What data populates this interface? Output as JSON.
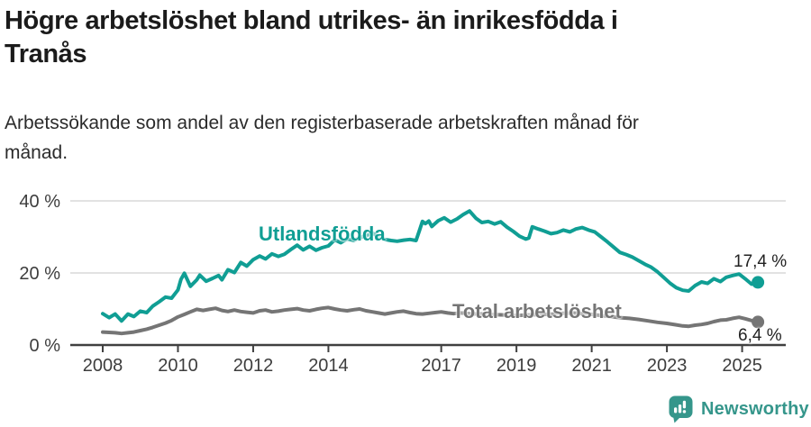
{
  "title": {
    "line1": "Högre arbetslöshet bland utrikes- än inrikesfödda i",
    "line2": "Tranås"
  },
  "subtitle": {
    "line1": "Arbetssökande som andel av den registerbaserade arbetskraften månad för",
    "line2": "månad."
  },
  "footer": {
    "brand": "Newsworthy",
    "logo_icon": "newsworthy-speech-bubble-bar-chart-icon",
    "brand_color": "#35968b"
  },
  "colors": {
    "accent_teal": "#109e94",
    "series_gray": "#757575",
    "gridline": "#d9d9d9",
    "axis": "#404040",
    "tick_text": "#3d3d3d",
    "annotation_text": "#222222"
  },
  "chart_data": {
    "type": "line",
    "x_axis": {
      "ticks": [
        2008,
        2010,
        2012,
        2014,
        2017,
        2019,
        2021,
        2023,
        2025
      ],
      "range": [
        2007.8,
        2025.9
      ],
      "unit": "year (monthly data)"
    },
    "y_axis": {
      "ticks": [
        {
          "value": 0,
          "label": "0 %"
        },
        {
          "value": 20,
          "label": "20 %"
        },
        {
          "value": 40,
          "label": "40 %"
        }
      ],
      "range": [
        0,
        44
      ],
      "grid": true
    },
    "legend_position": "inline-labels",
    "series": [
      {
        "name": "Utlandsfödda",
        "color": "#109e94",
        "end_label": "17,4 %",
        "end_value": 17.4,
        "points": [
          [
            2008.0,
            8.7
          ],
          [
            2008.17,
            7.6
          ],
          [
            2008.33,
            8.6
          ],
          [
            2008.5,
            6.7
          ],
          [
            2008.67,
            8.6
          ],
          [
            2008.83,
            7.9
          ],
          [
            2009.0,
            9.4
          ],
          [
            2009.17,
            9.0
          ],
          [
            2009.33,
            10.8
          ],
          [
            2009.5,
            12.0
          ],
          [
            2009.67,
            13.3
          ],
          [
            2009.83,
            13.0
          ],
          [
            2010.0,
            15.3
          ],
          [
            2010.08,
            18.2
          ],
          [
            2010.17,
            19.9
          ],
          [
            2010.33,
            16.3
          ],
          [
            2010.5,
            18.1
          ],
          [
            2010.58,
            19.4
          ],
          [
            2010.75,
            17.7
          ],
          [
            2010.92,
            18.5
          ],
          [
            2011.08,
            19.3
          ],
          [
            2011.17,
            18.1
          ],
          [
            2011.33,
            20.9
          ],
          [
            2011.5,
            20.1
          ],
          [
            2011.67,
            22.9
          ],
          [
            2011.83,
            21.9
          ],
          [
            2012.0,
            23.7
          ],
          [
            2012.17,
            24.7
          ],
          [
            2012.33,
            23.9
          ],
          [
            2012.5,
            25.3
          ],
          [
            2012.67,
            24.6
          ],
          [
            2012.83,
            25.2
          ],
          [
            2013.0,
            26.5
          ],
          [
            2013.17,
            27.7
          ],
          [
            2013.33,
            26.4
          ],
          [
            2013.5,
            27.4
          ],
          [
            2013.67,
            26.3
          ],
          [
            2013.83,
            27.0
          ],
          [
            2014.0,
            27.5
          ],
          [
            2014.17,
            29.2
          ],
          [
            2014.33,
            28.4
          ],
          [
            2014.5,
            29.5
          ],
          [
            2014.67,
            29.0
          ],
          [
            2014.83,
            29.8
          ],
          [
            2015.0,
            30.3
          ],
          [
            2015.17,
            31.1
          ],
          [
            2015.33,
            30.0
          ],
          [
            2015.5,
            29.3
          ],
          [
            2015.67,
            29.0
          ],
          [
            2015.83,
            28.8
          ],
          [
            2016.0,
            29.1
          ],
          [
            2016.17,
            29.3
          ],
          [
            2016.33,
            29.0
          ],
          [
            2016.42,
            31.8
          ],
          [
            2016.5,
            34.3
          ],
          [
            2016.58,
            33.7
          ],
          [
            2016.67,
            34.4
          ],
          [
            2016.75,
            32.9
          ],
          [
            2016.92,
            34.5
          ],
          [
            2017.08,
            35.3
          ],
          [
            2017.25,
            34.1
          ],
          [
            2017.42,
            35.0
          ],
          [
            2017.58,
            36.2
          ],
          [
            2017.75,
            37.2
          ],
          [
            2017.92,
            35.2
          ],
          [
            2018.08,
            34.0
          ],
          [
            2018.25,
            34.3
          ],
          [
            2018.42,
            33.6
          ],
          [
            2018.58,
            34.2
          ],
          [
            2018.75,
            32.7
          ],
          [
            2018.92,
            31.5
          ],
          [
            2019.08,
            30.2
          ],
          [
            2019.25,
            29.4
          ],
          [
            2019.33,
            29.7
          ],
          [
            2019.42,
            32.8
          ],
          [
            2019.58,
            32.2
          ],
          [
            2019.75,
            31.6
          ],
          [
            2019.92,
            30.9
          ],
          [
            2020.08,
            31.2
          ],
          [
            2020.25,
            31.9
          ],
          [
            2020.42,
            31.4
          ],
          [
            2020.58,
            32.2
          ],
          [
            2020.75,
            32.6
          ],
          [
            2020.92,
            31.9
          ],
          [
            2021.08,
            31.4
          ],
          [
            2021.25,
            30.0
          ],
          [
            2021.42,
            28.6
          ],
          [
            2021.58,
            27.2
          ],
          [
            2021.75,
            25.7
          ],
          [
            2021.92,
            25.1
          ],
          [
            2022.08,
            24.4
          ],
          [
            2022.25,
            23.4
          ],
          [
            2022.42,
            22.4
          ],
          [
            2022.58,
            21.6
          ],
          [
            2022.75,
            20.3
          ],
          [
            2022.92,
            18.7
          ],
          [
            2023.08,
            17.2
          ],
          [
            2023.25,
            15.9
          ],
          [
            2023.42,
            15.2
          ],
          [
            2023.58,
            15.0
          ],
          [
            2023.75,
            16.5
          ],
          [
            2023.92,
            17.5
          ],
          [
            2024.08,
            17.1
          ],
          [
            2024.25,
            18.4
          ],
          [
            2024.42,
            17.6
          ],
          [
            2024.58,
            18.8
          ],
          [
            2024.75,
            19.3
          ],
          [
            2024.92,
            19.7
          ],
          [
            2025.08,
            18.4
          ],
          [
            2025.25,
            16.9
          ],
          [
            2025.42,
            17.4
          ]
        ]
      },
      {
        "name": "Total arbetslöshet",
        "color": "#757575",
        "end_label": "6,4 %",
        "end_value": 6.4,
        "points": [
          [
            2008.0,
            3.6
          ],
          [
            2008.17,
            3.5
          ],
          [
            2008.33,
            3.4
          ],
          [
            2008.5,
            3.2
          ],
          [
            2008.67,
            3.4
          ],
          [
            2008.83,
            3.6
          ],
          [
            2009.0,
            4.0
          ],
          [
            2009.17,
            4.4
          ],
          [
            2009.33,
            4.9
          ],
          [
            2009.5,
            5.5
          ],
          [
            2009.67,
            6.1
          ],
          [
            2009.83,
            6.8
          ],
          [
            2010.0,
            7.8
          ],
          [
            2010.17,
            8.5
          ],
          [
            2010.33,
            9.2
          ],
          [
            2010.5,
            9.9
          ],
          [
            2010.67,
            9.6
          ],
          [
            2010.83,
            9.9
          ],
          [
            2011.0,
            10.2
          ],
          [
            2011.17,
            9.6
          ],
          [
            2011.33,
            9.3
          ],
          [
            2011.5,
            9.7
          ],
          [
            2011.67,
            9.3
          ],
          [
            2011.83,
            9.1
          ],
          [
            2012.0,
            8.9
          ],
          [
            2012.17,
            9.5
          ],
          [
            2012.33,
            9.7
          ],
          [
            2012.5,
            9.2
          ],
          [
            2012.67,
            9.4
          ],
          [
            2012.83,
            9.7
          ],
          [
            2013.0,
            9.9
          ],
          [
            2013.17,
            10.1
          ],
          [
            2013.33,
            9.7
          ],
          [
            2013.5,
            9.5
          ],
          [
            2013.67,
            9.9
          ],
          [
            2013.83,
            10.2
          ],
          [
            2014.0,
            10.4
          ],
          [
            2014.17,
            10.0
          ],
          [
            2014.33,
            9.7
          ],
          [
            2014.5,
            9.5
          ],
          [
            2014.67,
            9.8
          ],
          [
            2014.83,
            10.0
          ],
          [
            2015.0,
            9.5
          ],
          [
            2015.17,
            9.2
          ],
          [
            2015.33,
            8.9
          ],
          [
            2015.5,
            8.6
          ],
          [
            2015.67,
            8.9
          ],
          [
            2015.83,
            9.2
          ],
          [
            2016.0,
            9.4
          ],
          [
            2016.17,
            9.0
          ],
          [
            2016.33,
            8.7
          ],
          [
            2016.5,
            8.6
          ],
          [
            2016.67,
            8.8
          ],
          [
            2016.83,
            9.0
          ],
          [
            2017.0,
            9.2
          ],
          [
            2017.17,
            8.9
          ],
          [
            2017.33,
            8.7
          ],
          [
            2017.5,
            8.9
          ],
          [
            2017.67,
            8.8
          ],
          [
            2017.83,
            8.6
          ],
          [
            2018.0,
            8.7
          ],
          [
            2018.25,
            8.5
          ],
          [
            2018.5,
            8.4
          ],
          [
            2018.75,
            8.3
          ],
          [
            2019.0,
            8.2
          ],
          [
            2019.25,
            8.3
          ],
          [
            2019.5,
            8.4
          ],
          [
            2019.75,
            8.5
          ],
          [
            2020.0,
            8.6
          ],
          [
            2020.25,
            8.8
          ],
          [
            2020.5,
            8.9
          ],
          [
            2020.75,
            8.7
          ],
          [
            2021.0,
            8.5
          ],
          [
            2021.25,
            8.2
          ],
          [
            2021.5,
            7.9
          ],
          [
            2021.75,
            7.6
          ],
          [
            2022.0,
            7.4
          ],
          [
            2022.25,
            7.1
          ],
          [
            2022.5,
            6.7
          ],
          [
            2022.75,
            6.3
          ],
          [
            2023.0,
            6.0
          ],
          [
            2023.25,
            5.6
          ],
          [
            2023.42,
            5.3
          ],
          [
            2023.58,
            5.2
          ],
          [
            2023.75,
            5.5
          ],
          [
            2023.92,
            5.7
          ],
          [
            2024.08,
            6.0
          ],
          [
            2024.25,
            6.5
          ],
          [
            2024.42,
            6.9
          ],
          [
            2024.58,
            7.0
          ],
          [
            2024.75,
            7.4
          ],
          [
            2024.92,
            7.7
          ],
          [
            2025.08,
            7.3
          ],
          [
            2025.25,
            6.8
          ],
          [
            2025.42,
            6.4
          ]
        ]
      }
    ]
  }
}
